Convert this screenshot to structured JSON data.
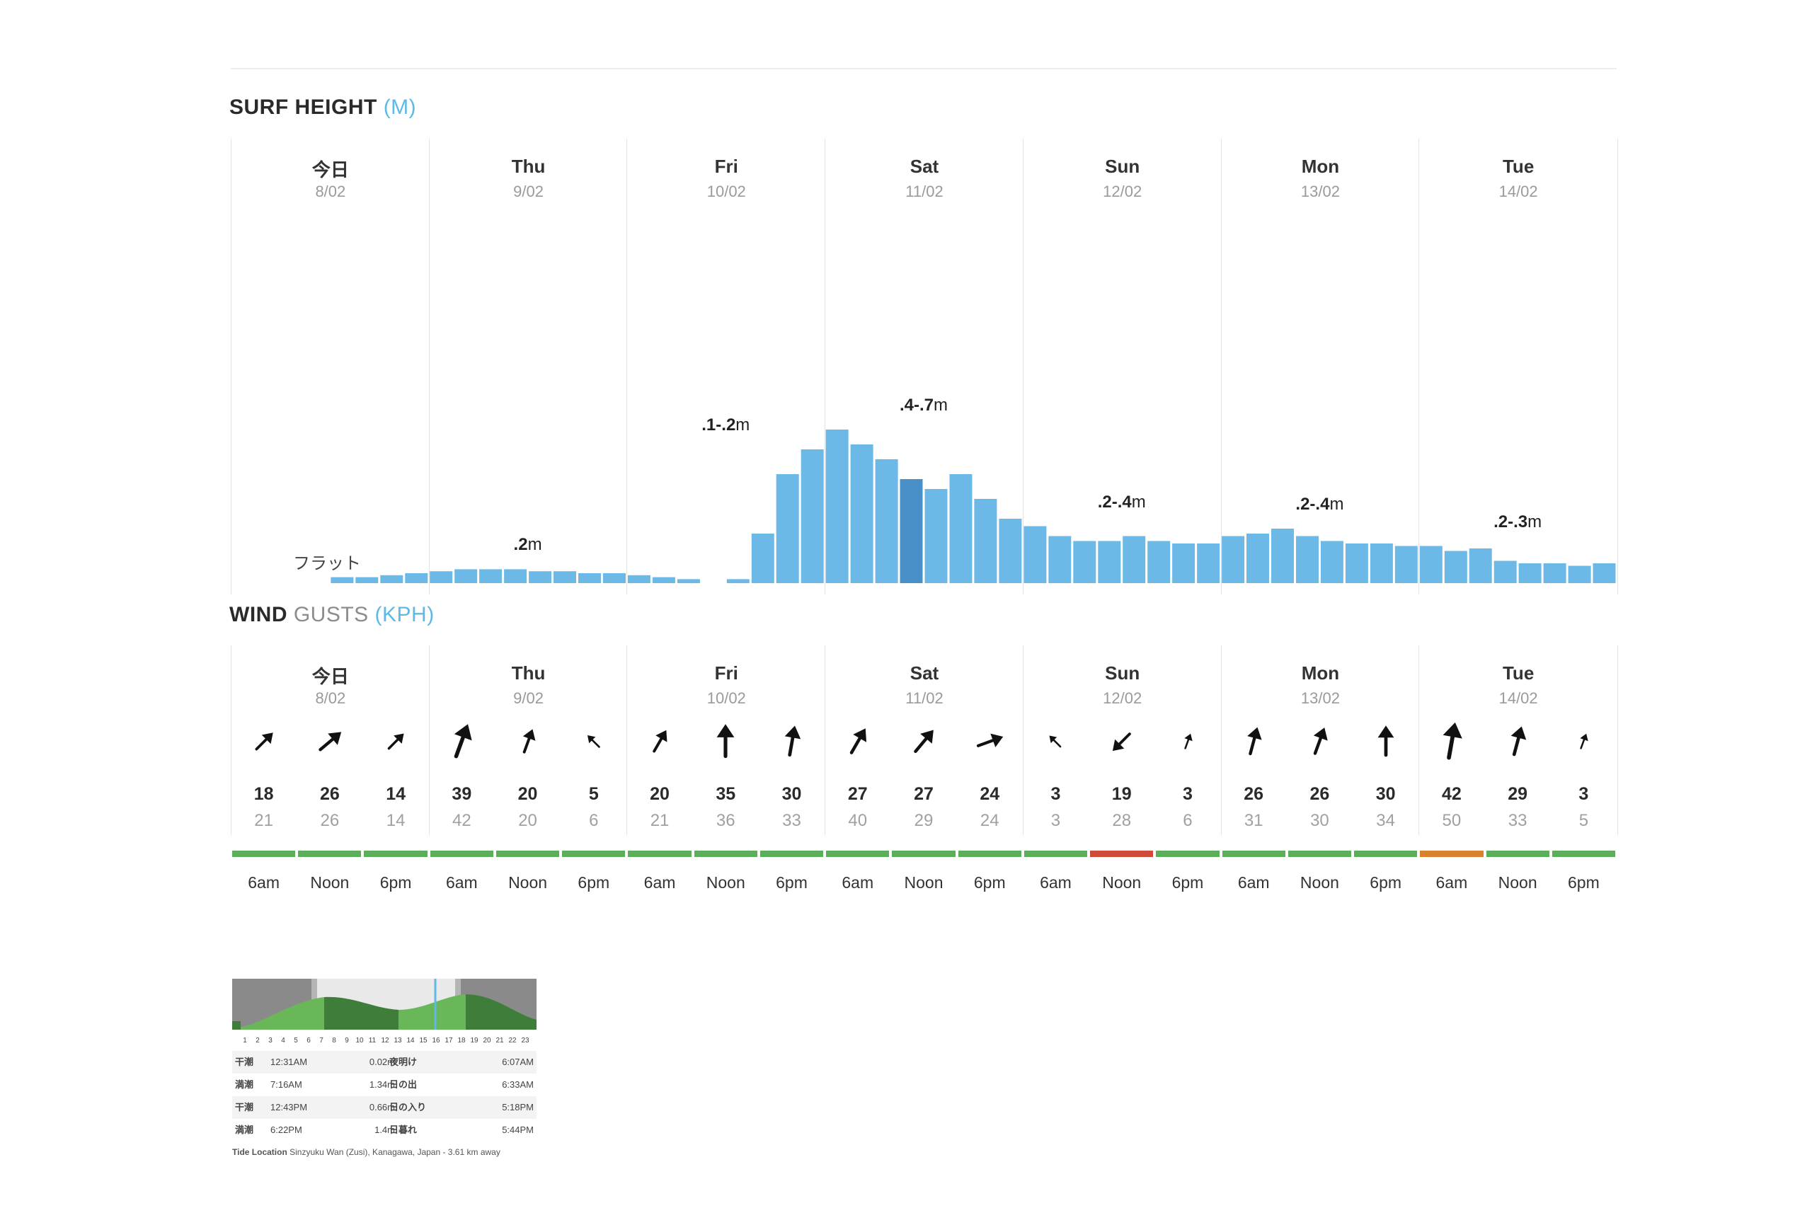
{
  "surf": {
    "title_main": "SURF HEIGHT",
    "title_unit": "(M)",
    "flat_label": "フラット",
    "days": [
      {
        "name": "今日",
        "date": "8/02"
      },
      {
        "name": "Thu",
        "date": "9/02"
      },
      {
        "name": "Fri",
        "date": "10/02"
      },
      {
        "name": "Sat",
        "date": "11/02"
      },
      {
        "name": "Sun",
        "date": "12/02"
      },
      {
        "name": "Mon",
        "date": "13/02"
      },
      {
        "name": "Tue",
        "date": "14/02"
      }
    ],
    "range_labels": [
      {
        "range": "",
        "unit": ""
      },
      {
        "range": ".2",
        "unit": "m"
      },
      {
        "range": ".1-.2",
        "unit": "m"
      },
      {
        "range": ".4-.7",
        "unit": "m"
      },
      {
        "range": ".2-.4",
        "unit": "m"
      },
      {
        "range": ".2-.4",
        "unit": "m"
      },
      {
        "range": ".2-.3",
        "unit": "m"
      }
    ]
  },
  "chart_data": {
    "type": "bar",
    "title": "SURF HEIGHT (M)",
    "ylim": [
      0,
      0.8
    ],
    "note": "8 three-hour bars per day, 7 days",
    "values": [
      0,
      0,
      0,
      0,
      0.012,
      0.012,
      0.016,
      0.02,
      0.024,
      0.028,
      0.028,
      0.028,
      0.024,
      0.024,
      0.02,
      0.02,
      0.016,
      0.012,
      0.008,
      0,
      0.008,
      0.1,
      0.22,
      0.27,
      0.31,
      0.28,
      0.25,
      0.21,
      0.19,
      0.22,
      0.17,
      0.13,
      0.115,
      0.095,
      0.085,
      0.085,
      0.095,
      0.085,
      0.08,
      0.08,
      0.095,
      0.1,
      0.11,
      0.095,
      0.085,
      0.08,
      0.08,
      0.075,
      0.075,
      0.065,
      0.07,
      0.045,
      0.04,
      0.04,
      0.035,
      0.04
    ],
    "highlight_index": 27,
    "colors": {
      "bar": "#6cb8e6",
      "highlight": "#4a90c8"
    }
  },
  "wind": {
    "title_bold": "WIND",
    "title_light": "GUSTS",
    "title_unit": "(KPH)",
    "periods": [
      {
        "time": "6am",
        "speed": "18",
        "gust": "21",
        "dir": 225,
        "color": "#5cae5a"
      },
      {
        "time": "Noon",
        "speed": "26",
        "gust": "26",
        "dir": 230,
        "color": "#5cae5a"
      },
      {
        "time": "6pm",
        "speed": "14",
        "gust": "14",
        "dir": 225,
        "color": "#5cae5a"
      },
      {
        "time": "6am",
        "speed": "39",
        "gust": "42",
        "dir": 200,
        "color": "#5cae5a"
      },
      {
        "time": "Noon",
        "speed": "20",
        "gust": "20",
        "dir": 200,
        "color": "#5cae5a"
      },
      {
        "time": "6pm",
        "speed": "5",
        "gust": "6",
        "dir": 135,
        "color": "#5cae5a"
      },
      {
        "time": "6am",
        "speed": "20",
        "gust": "21",
        "dir": 210,
        "color": "#5cae5a"
      },
      {
        "time": "Noon",
        "speed": "35",
        "gust": "36",
        "dir": 180,
        "color": "#5cae5a"
      },
      {
        "time": "6pm",
        "speed": "30",
        "gust": "33",
        "dir": 190,
        "color": "#5cae5a"
      },
      {
        "time": "6am",
        "speed": "27",
        "gust": "40",
        "dir": 210,
        "color": "#5cae5a"
      },
      {
        "time": "Noon",
        "speed": "27",
        "gust": "29",
        "dir": 220,
        "color": "#5cae5a"
      },
      {
        "time": "6pm",
        "speed": "24",
        "gust": "24",
        "dir": 250,
        "color": "#5cae5a"
      },
      {
        "time": "6am",
        "speed": "3",
        "gust": "3",
        "dir": 135,
        "color": "#5cae5a"
      },
      {
        "time": "Noon",
        "speed": "19",
        "gust": "28",
        "dir": 45,
        "color": "#d04a3a"
      },
      {
        "time": "6pm",
        "speed": "3",
        "gust": "6",
        "dir": 200,
        "color": "#5cae5a"
      },
      {
        "time": "6am",
        "speed": "26",
        "gust": "31",
        "dir": 195,
        "color": "#5cae5a"
      },
      {
        "time": "Noon",
        "speed": "26",
        "gust": "30",
        "dir": 200,
        "color": "#5cae5a"
      },
      {
        "time": "6pm",
        "speed": "30",
        "gust": "34",
        "dir": 180,
        "color": "#5cae5a"
      },
      {
        "time": "6am",
        "speed": "42",
        "gust": "50",
        "dir": 190,
        "color": "#d8832c"
      },
      {
        "time": "Noon",
        "speed": "29",
        "gust": "33",
        "dir": 195,
        "color": "#5cae5a"
      },
      {
        "time": "6pm",
        "speed": "3",
        "gust": "5",
        "dir": 200,
        "color": "#5cae5a"
      }
    ]
  },
  "tide": {
    "hours": [
      "1",
      "2",
      "3",
      "4",
      "5",
      "6",
      "7",
      "8",
      "9",
      "10",
      "11",
      "12",
      "13",
      "14",
      "15",
      "16",
      "17",
      "18",
      "19",
      "20",
      "21",
      "22",
      "23"
    ],
    "rows": [
      {
        "type": "干潮",
        "time": "12:31AM",
        "height": "0.02m",
        "sun_name": "夜明け",
        "sun_time": "6:07AM"
      },
      {
        "type": "満潮",
        "time": "7:16AM",
        "height": "1.34m",
        "sun_name": "日の出",
        "sun_time": "6:33AM"
      },
      {
        "type": "干潮",
        "time": "12:43PM",
        "height": "0.66m",
        "sun_name": "日の入り",
        "sun_time": "5:18PM"
      },
      {
        "type": "満潮",
        "time": "6:22PM",
        "height": "1.4m",
        "sun_name": "日暮れ",
        "sun_time": "5:44PM"
      }
    ],
    "location_label": "Tide Location",
    "location_text": "Sinzyuku Wan (Zusi), Kanagawa, Japan - 3.61 km away"
  }
}
